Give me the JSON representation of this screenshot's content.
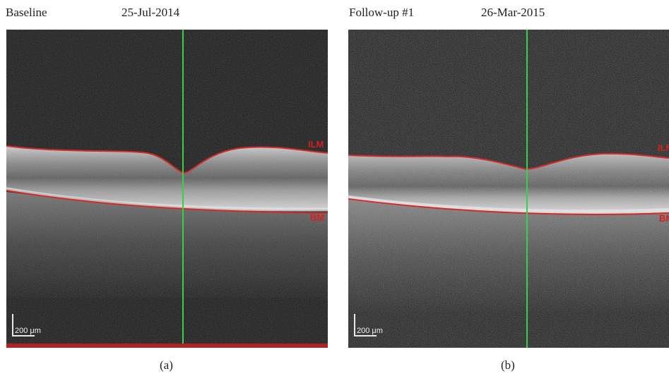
{
  "panels": [
    {
      "title": "Baseline",
      "date": "25-Jul-2014",
      "caption": "(a)",
      "scale_text": "200 μm",
      "layer_labels": {
        "top": "ILM",
        "bottom": "BM"
      }
    },
    {
      "title": "Follow-up #1",
      "date": "26-Mar-2015",
      "caption": "(b)",
      "scale_text": "200 μm",
      "layer_labels": {
        "top": "ILM",
        "bottom": "BM"
      }
    }
  ],
  "colors": {
    "boundary_line": "#d42a2a",
    "cursor_line": "#38d04a",
    "background": "#141414"
  }
}
